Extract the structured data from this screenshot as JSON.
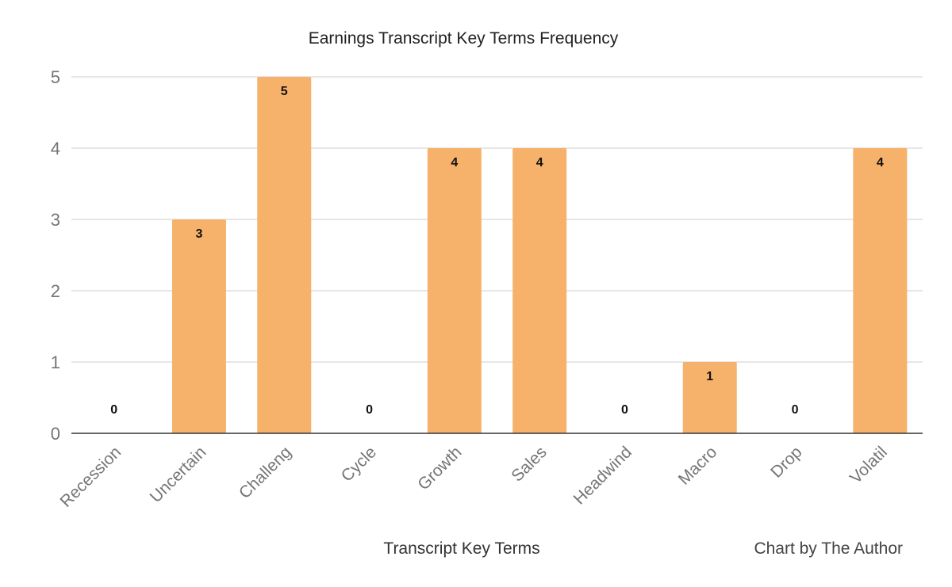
{
  "chart_data": {
    "type": "bar",
    "title": "Earnings Transcript Key Terms Frequency",
    "xlabel": "Transcript Key Terms",
    "ylabel": "",
    "credit": "Chart by The Author",
    "categories": [
      "Recession",
      "Uncertain",
      "Challeng",
      "Cycle",
      "Growth",
      "Sales",
      "Headwind",
      "Macro",
      "Drop",
      "Volatil"
    ],
    "values": [
      0,
      3,
      5,
      0,
      4,
      4,
      0,
      1,
      0,
      4
    ],
    "ylim": [
      0,
      5
    ],
    "yticks": [
      0,
      1,
      2,
      3,
      4,
      5
    ],
    "grid": true,
    "legend": "none",
    "data_labels": true,
    "bar_color": "#f6b26b"
  }
}
